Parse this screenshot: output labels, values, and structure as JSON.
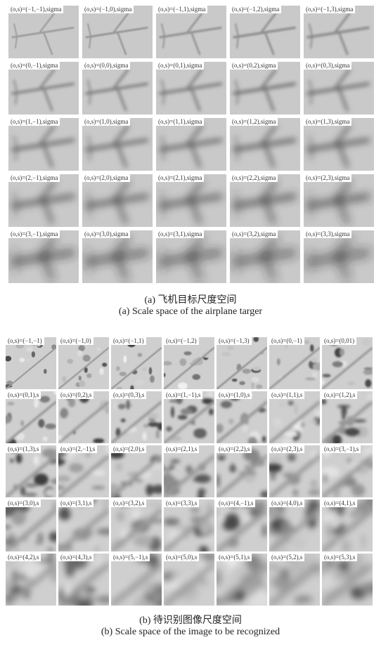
{
  "figure_a": {
    "rows": [
      [
        "(o,s)=(−1,−1),sigma",
        "(o,s)=(−1,0),sigma",
        "(o,s)=(−1,1),sigma",
        "(o,s)=(−1,2),sigma",
        "(o,s)=(−1,3),sigma"
      ],
      [
        "(o,s)=(0,−1),sigma",
        "(o,s)=(0,0),sigma",
        "(o,s)=(0,1),sigma",
        "(o,s)=(0,2),sigma",
        "(o,s)=(0,3),sigma"
      ],
      [
        "(o,s)=(1,−1),sigma",
        "(o,s)=(1,0),sigma",
        "(o,s)=(1,1),sigma",
        "(o,s)=(1,2),sigma",
        "(o,s)=(1,3),sigma"
      ],
      [
        "(o,s)=(2,−1),sigma",
        "(o,s)=(2,0),sigma",
        "(o,s)=(2,1),sigma",
        "(o,s)=(2,2),sigma",
        "(o,s)=(2,3),sigma"
      ],
      [
        "(o,s)=(3,−1),sigma",
        "(o,s)=(3,0),sigma",
        "(o,s)=(3,1),sigma",
        "(o,s)=(3,2),sigma",
        "(o,s)=(3,3),sigma"
      ]
    ],
    "caption_zh": "(a) 飞机目标尺度空间",
    "caption_en": "(a) Scale space of the airplane targer"
  },
  "figure_b": {
    "rows": [
      [
        "(o,s)=(−1,−1)",
        "(o,s)=(−1,0)",
        "(o,s)=(−1,1)",
        "(o,s)=(−1,2)",
        "(o,s)=(−1,3)",
        "(o,s)=(0,−1)",
        "(o,s)=(0,01)"
      ],
      [
        "(o,s)=(0,1),s",
        "(o,s)=(0,2),s",
        "(o,s)=(0,3),s",
        "(o,s)=(1,−1),s",
        "(o,s)=(1,0),s",
        "(o,s)=(1,1),s",
        "(o,s)=(1,2),s"
      ],
      [
        "(o,s)=(1,3),s",
        "(o,s)=(2,−1),s",
        "(o,s)=(2,0),s",
        "(o,s)=(2,1),s",
        "(o,s)=(2,2),s",
        "(o,s)=(2,3),s",
        "(o,s)=(3,−1),s"
      ],
      [
        "(o,s)=(3,0),s",
        "(o,s)=(3,1),s",
        "(o,s)=(3,2),s",
        "(o,s)=(3,3),s",
        "(o,s)=(4,−1),s",
        "(o,s)=(4,0),s",
        "(o,s)=(4,1),s"
      ],
      [
        "(o,s)=(4,2),s",
        "(o,s)=(4,3),s",
        "(o,s)=(5,−1),s",
        "(o,s)=(5,0),s",
        "(o,s)=(5,1),s",
        "(o,s)=(5,2),s",
        "(o,s)=(5,3),s"
      ]
    ],
    "caption_zh": "(b) 待识别图像尺度空间",
    "caption_en": "(b) Scale space of the image to be recognized"
  }
}
